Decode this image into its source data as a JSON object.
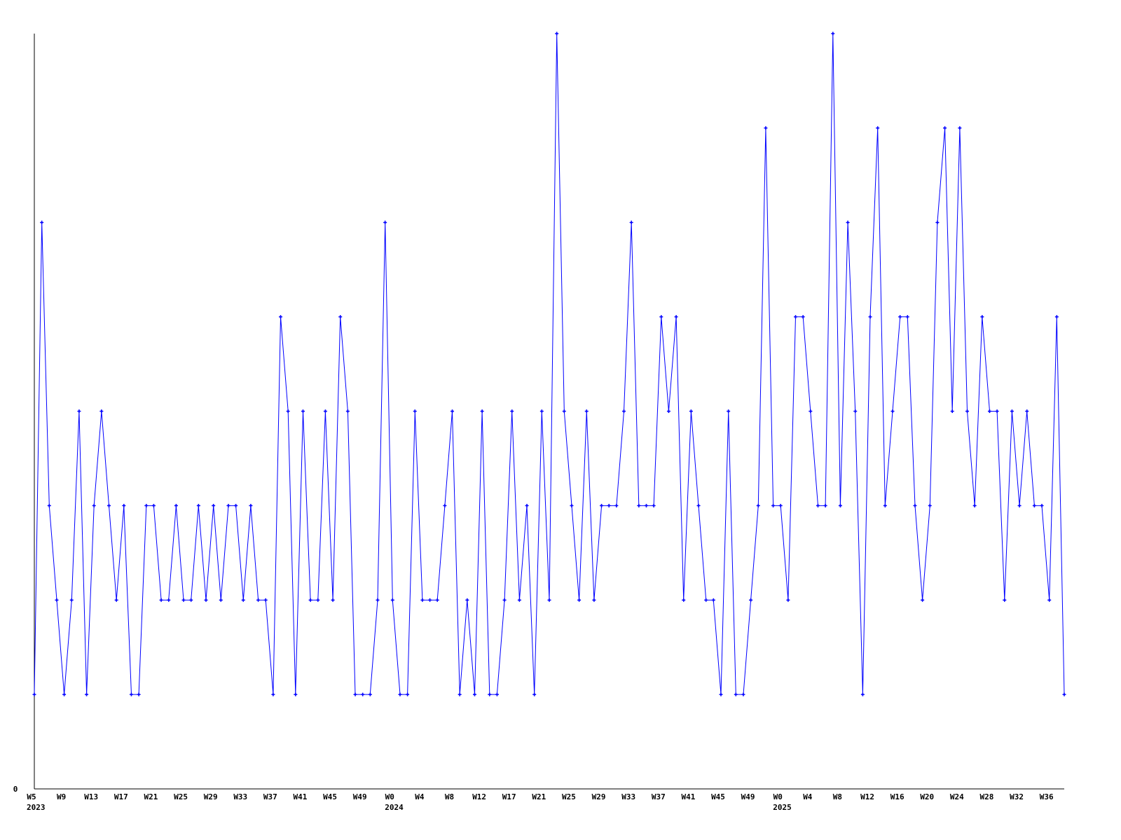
{
  "chart_data": {
    "type": "line",
    "title": "",
    "xlabel": "",
    "ylabel": "",
    "ylim": [
      0,
      8
    ],
    "y_tick_labels": [
      {
        "label": "0",
        "value": 0
      }
    ],
    "grid": false,
    "legend": "none",
    "line_color": "#0000ff",
    "axis_color": "#000000",
    "values": [
      1,
      6,
      3,
      2,
      1,
      2,
      4,
      1,
      3,
      4,
      3,
      2,
      3,
      1,
      1,
      3,
      3,
      2,
      2,
      3,
      2,
      2,
      3,
      2,
      3,
      2,
      3,
      3,
      2,
      3,
      2,
      2,
      1,
      5,
      4,
      1,
      4,
      2,
      2,
      4,
      2,
      5,
      4,
      1,
      1,
      1,
      2,
      6,
      2,
      1,
      1,
      4,
      2,
      2,
      2,
      3,
      4,
      1,
      2,
      1,
      4,
      1,
      1,
      2,
      4,
      2,
      3,
      1,
      4,
      2,
      8,
      4,
      3,
      2,
      4,
      2,
      3,
      3,
      3,
      4,
      6,
      3,
      3,
      3,
      5,
      4,
      5,
      2,
      4,
      3,
      2,
      2,
      1,
      4,
      1,
      1,
      2,
      3,
      7,
      3,
      3,
      2,
      5,
      5,
      4,
      3,
      3,
      8,
      3,
      6,
      4,
      1,
      5,
      7,
      3,
      4,
      5,
      5,
      3,
      2,
      3,
      6,
      7,
      4,
      7,
      4,
      3,
      5,
      4,
      4,
      2,
      4,
      3,
      4,
      3,
      3,
      2,
      5,
      1
    ],
    "x_tick_labels": [
      {
        "label": "W5",
        "index": 0,
        "year": "2023"
      },
      {
        "label": "W9",
        "index": 4
      },
      {
        "label": "W13",
        "index": 8
      },
      {
        "label": "W17",
        "index": 12
      },
      {
        "label": "W21",
        "index": 16
      },
      {
        "label": "W25",
        "index": 20
      },
      {
        "label": "W29",
        "index": 24
      },
      {
        "label": "W33",
        "index": 28
      },
      {
        "label": "W37",
        "index": 32
      },
      {
        "label": "W41",
        "index": 36
      },
      {
        "label": "W45",
        "index": 40
      },
      {
        "label": "W49",
        "index": 44
      },
      {
        "label": "W0",
        "index": 48,
        "year": "2024"
      },
      {
        "label": "W4",
        "index": 52
      },
      {
        "label": "W8",
        "index": 56
      },
      {
        "label": "W12",
        "index": 60
      },
      {
        "label": "W17",
        "index": 64
      },
      {
        "label": "W21",
        "index": 68
      },
      {
        "label": "W25",
        "index": 72
      },
      {
        "label": "W29",
        "index": 76
      },
      {
        "label": "W33",
        "index": 80
      },
      {
        "label": "W37",
        "index": 84
      },
      {
        "label": "W41",
        "index": 88
      },
      {
        "label": "W45",
        "index": 92
      },
      {
        "label": "W49",
        "index": 96
      },
      {
        "label": "W0",
        "index": 100,
        "year": "2025"
      },
      {
        "label": "W4",
        "index": 104
      },
      {
        "label": "W8",
        "index": 108
      },
      {
        "label": "W12",
        "index": 112
      },
      {
        "label": "W16",
        "index": 116
      },
      {
        "label": "W20",
        "index": 120
      },
      {
        "label": "W24",
        "index": 124
      },
      {
        "label": "W28",
        "index": 128
      },
      {
        "label": "W32",
        "index": 132
      },
      {
        "label": "W36",
        "index": 136
      }
    ]
  }
}
